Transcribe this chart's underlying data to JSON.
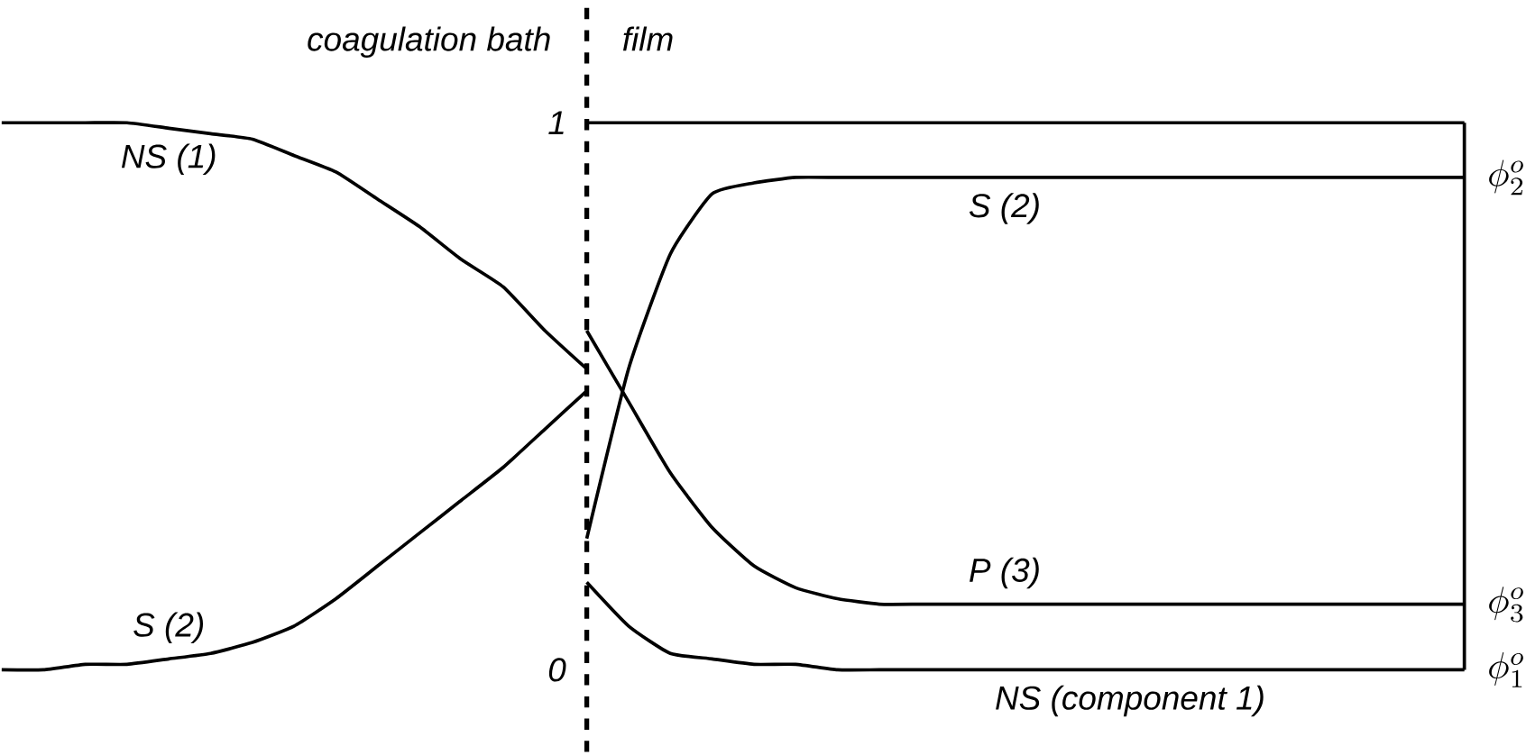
{
  "chart_data": {
    "type": "line",
    "categories": [
      null,
      null,
      null,
      null,
      null,
      null,
      null,
      null,
      null,
      null,
      null,
      null,
      null,
      null,
      null,
      null,
      null,
      null,
      null,
      null,
      null,
      null,
      null,
      null,
      null,
      null,
      null,
      null,
      null,
      null,
      null,
      null,
      null,
      null,
      null,
      null
    ],
    "annotations": [
      "coagulation bath",
      "film",
      "\\phi^{o}_{2}",
      "\\phi^{o}_{3}",
      "\\phi^{o}_{1}"
    ],
    "series": [
      {
        "name": "NS (1)",
        "color": "#000000",
        "values": [
          1.0,
          1.0,
          1.0,
          1.0,
          0.99,
          0.98,
          0.97,
          0.94,
          0.91,
          0.86,
          0.81,
          0.75,
          0.7,
          0.62,
          0.55,
          null,
          null,
          null,
          null,
          null,
          null,
          null,
          null,
          null,
          null,
          null,
          null,
          null,
          null,
          null,
          null,
          null,
          null,
          null,
          null,
          null
        ]
      },
      {
        "name": "S (2)",
        "color": "#000000",
        "values": [
          0.0,
          0.0,
          0.01,
          0.01,
          0.02,
          0.03,
          0.05,
          0.08,
          0.13,
          0.19,
          0.25,
          0.31,
          0.37,
          0.44,
          0.51,
          null,
          null,
          null,
          null,
          null,
          null,
          null,
          null,
          null,
          null,
          null,
          null,
          null,
          null,
          null,
          null,
          null,
          null,
          null,
          null,
          null
        ]
      },
      {
        "name": "S (2)",
        "color": "#000000",
        "values": [
          null,
          null,
          null,
          null,
          null,
          null,
          null,
          null,
          null,
          null,
          null,
          null,
          null,
          null,
          0.24,
          0.55,
          0.76,
          0.87,
          0.89,
          0.9,
          0.9,
          0.9,
          0.9,
          0.9,
          0.9,
          0.9,
          0.9,
          0.9,
          0.9,
          0.9,
          0.9,
          0.9,
          0.9,
          0.9,
          0.9,
          0.9
        ]
      },
      {
        "name": "P (3)",
        "color": "#000000",
        "values": [
          null,
          null,
          null,
          null,
          null,
          null,
          null,
          null,
          null,
          null,
          null,
          null,
          null,
          null,
          0.62,
          0.49,
          0.36,
          0.26,
          0.19,
          0.15,
          0.13,
          0.12,
          0.12,
          0.12,
          0.12,
          0.12,
          0.12,
          0.12,
          0.12,
          0.12,
          0.12,
          0.12,
          0.12,
          0.12,
          0.12,
          0.12
        ]
      },
      {
        "name": "NS (component 1)",
        "color": "#000000",
        "values": [
          null,
          null,
          null,
          null,
          null,
          null,
          null,
          null,
          null,
          null,
          null,
          null,
          null,
          null,
          0.16,
          0.08,
          0.03,
          0.02,
          0.01,
          0.01,
          0,
          0,
          0,
          0,
          0,
          0,
          0,
          0,
          0,
          0,
          0,
          0,
          0,
          0,
          0,
          0
        ]
      },
      {
        "color": "#000000",
        "values": [
          null,
          null,
          null,
          null,
          null,
          null,
          null,
          null,
          null,
          null,
          null,
          null,
          null,
          null,
          1,
          1,
          1,
          1,
          1,
          1,
          1,
          1,
          1,
          1,
          1,
          1,
          1,
          1,
          1,
          1,
          1,
          1,
          1,
          1,
          1,
          1
        ]
      }
    ],
    "ylim": [
      -0.15,
      1.22
    ],
    "yticks": [
      0,
      1
    ],
    "tick_labels": "y",
    "marker": "none",
    "line_style": "solid"
  }
}
